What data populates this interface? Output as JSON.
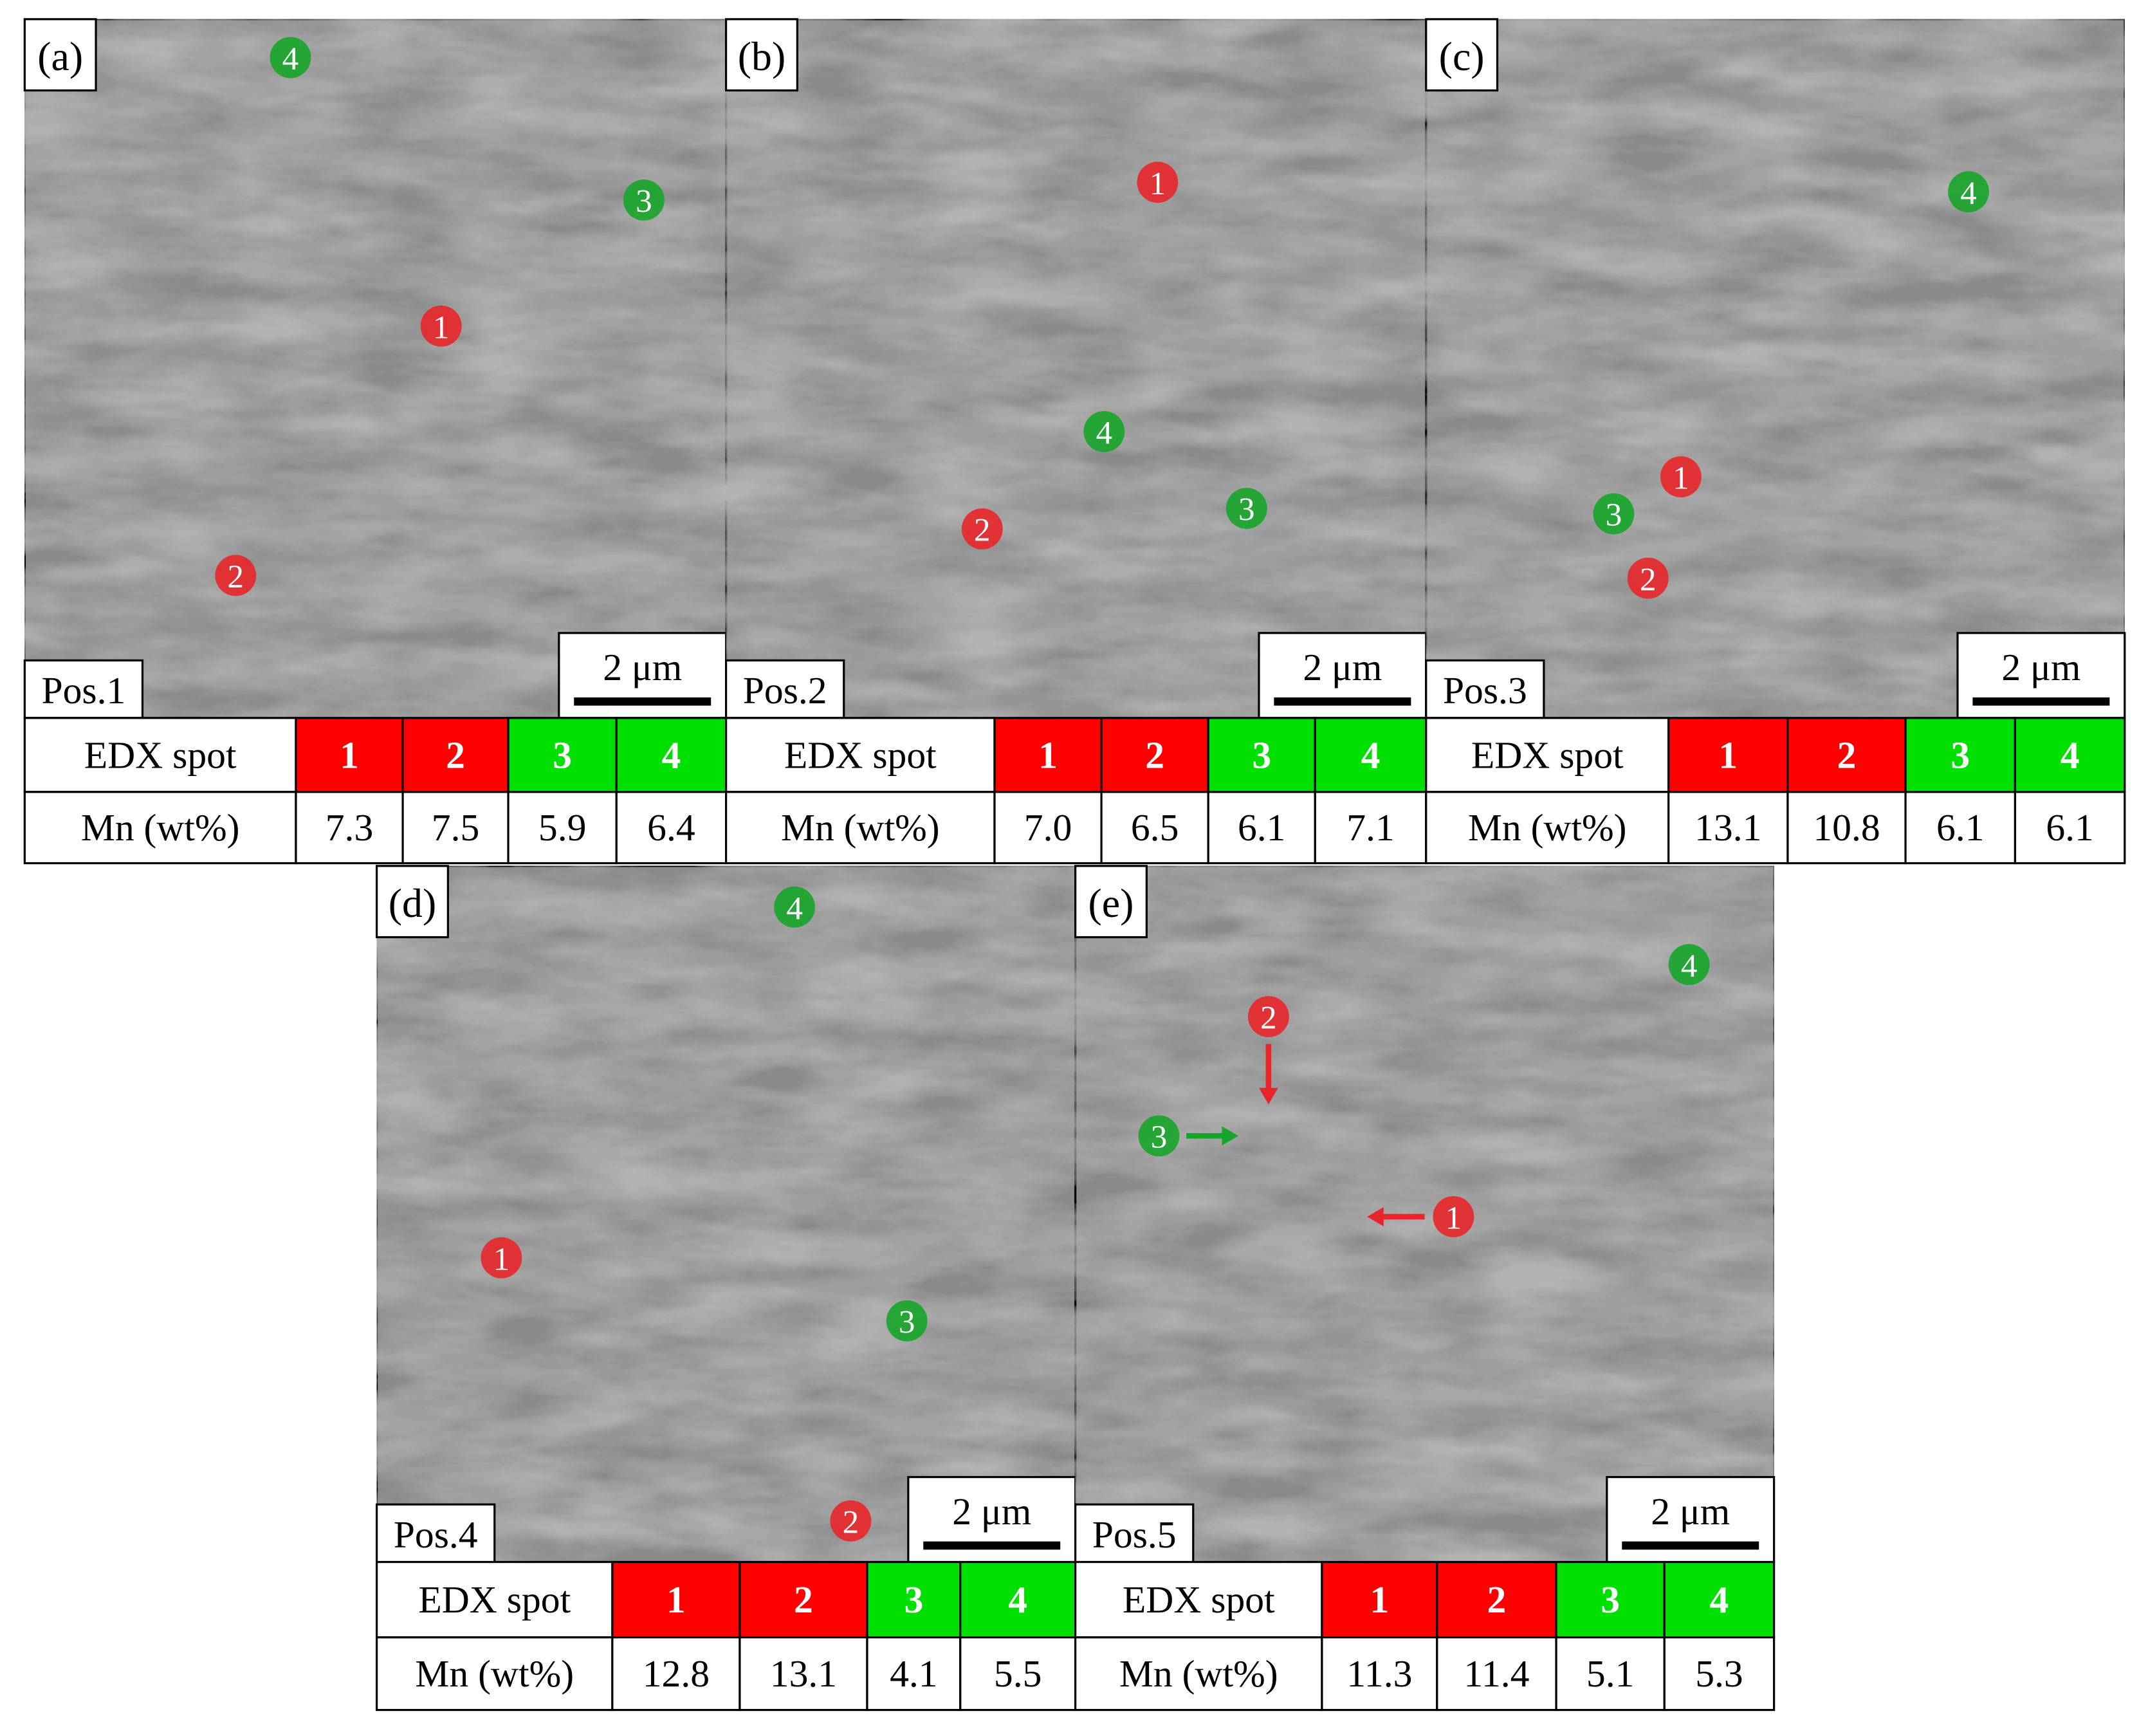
{
  "panels": [
    {
      "label": "(a)",
      "position": "Pos.1",
      "scale_bar": "2 μm",
      "table": {
        "header": "EDX spot",
        "spots": [
          "1",
          "2",
          "3",
          "4"
        ],
        "row_label": "Mn (wt%)",
        "values": [
          "7.3",
          "7.5",
          "5.9",
          "6.4"
        ]
      }
    },
    {
      "label": "(b)",
      "position": "Pos.2",
      "scale_bar": "2 μm",
      "table": {
        "header": "EDX spot",
        "spots": [
          "1",
          "2",
          "3",
          "4"
        ],
        "row_label": "Mn (wt%)",
        "values": [
          "7.0",
          "6.5",
          "6.1",
          "7.1"
        ]
      }
    },
    {
      "label": "(c)",
      "position": "Pos.3",
      "scale_bar": "2 μm",
      "table": {
        "header": "EDX spot",
        "spots": [
          "1",
          "2",
          "3",
          "4"
        ],
        "row_label": "Mn (wt%)",
        "values": [
          "13.1",
          "10.8",
          "6.1",
          "6.1"
        ]
      }
    },
    {
      "label": "(d)",
      "position": "Pos.4",
      "scale_bar": "2 μm",
      "table": {
        "header": "EDX spot",
        "spots": [
          "1",
          "2",
          "3",
          "4"
        ],
        "row_label": "Mn (wt%)",
        "values": [
          "12.8",
          "13.1",
          "4.1",
          "5.5"
        ]
      }
    },
    {
      "label": "(e)",
      "position": "Pos.5",
      "scale_bar": "2 μm",
      "table": {
        "header": "EDX spot",
        "spots": [
          "1",
          "2",
          "3",
          "4"
        ],
        "row_label": "Mn (wt%)",
        "values": [
          "11.3",
          "11.4",
          "5.1",
          "5.3"
        ]
      }
    }
  ]
}
